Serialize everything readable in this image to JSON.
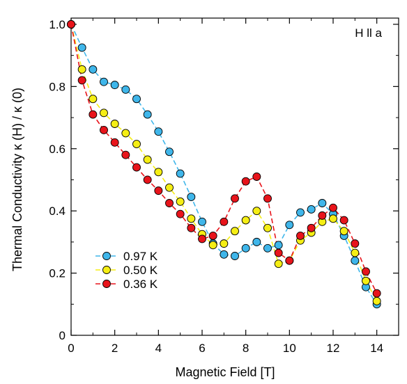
{
  "chart_data": {
    "type": "scatter",
    "title": "",
    "annotation": "H ll a",
    "xlabel": "Magnetic Field [T]",
    "ylabel": "Thermal Conductivity  κ (H) / κ (0)",
    "xlim": [
      0,
      15
    ],
    "ylim": [
      0,
      1.02
    ],
    "xticks": [
      0,
      2,
      4,
      6,
      8,
      10,
      12,
      14
    ],
    "yticks": [
      0,
      0.2,
      0.4,
      0.6,
      0.8,
      1.0
    ],
    "xtick_labels": [
      "0",
      "2",
      "4",
      "6",
      "8",
      "10",
      "12",
      "14"
    ],
    "ytick_labels": [
      "0",
      "0.2",
      "0.4",
      "0.6",
      "0.8",
      "1.0"
    ],
    "grid": false,
    "legend_position": "bottom-left",
    "series": [
      {
        "name": "0.97 K",
        "color": "#3fb6ea",
        "x": [
          0,
          0.5,
          1,
          1.5,
          2,
          2.5,
          3,
          3.5,
          4,
          4.5,
          5,
          5.5,
          6,
          6.5,
          7,
          7.5,
          8,
          8.5,
          9,
          9.5,
          10,
          10.5,
          11,
          11.5,
          12,
          12.5,
          13,
          13.5,
          14
        ],
        "y": [
          1.0,
          0.925,
          0.855,
          0.815,
          0.805,
          0.79,
          0.76,
          0.71,
          0.655,
          0.59,
          0.52,
          0.445,
          0.365,
          0.295,
          0.26,
          0.255,
          0.28,
          0.3,
          0.28,
          0.29,
          0.355,
          0.395,
          0.405,
          0.425,
          0.39,
          0.32,
          0.24,
          0.155,
          0.1
        ]
      },
      {
        "name": "0.50 K",
        "color": "#f5ee14",
        "x": [
          0,
          0.5,
          1,
          1.5,
          2,
          2.5,
          3,
          3.5,
          4,
          4.5,
          5,
          5.5,
          6,
          6.5,
          7,
          7.5,
          8,
          8.5,
          9,
          9.5,
          10,
          10.5,
          11,
          11.5,
          12,
          12.5,
          13,
          13.5,
          14
        ],
        "y": [
          1.0,
          0.855,
          0.76,
          0.715,
          0.68,
          0.65,
          0.615,
          0.565,
          0.525,
          0.475,
          0.43,
          0.375,
          0.325,
          0.29,
          0.295,
          0.335,
          0.37,
          0.4,
          0.345,
          0.23,
          0.24,
          0.305,
          0.33,
          0.365,
          0.375,
          0.335,
          0.265,
          0.175,
          0.11
        ]
      },
      {
        "name": "0.36 K",
        "color": "#e8141b",
        "x": [
          0,
          0.5,
          1,
          1.5,
          2,
          2.5,
          3,
          3.5,
          4,
          4.5,
          5,
          5.5,
          6,
          6.5,
          7,
          7.5,
          8,
          8.5,
          9,
          9.5,
          10,
          10.5,
          11,
          11.5,
          12,
          12.5,
          13,
          13.5,
          14
        ],
        "y": [
          1.0,
          0.82,
          0.71,
          0.66,
          0.62,
          0.58,
          0.54,
          0.5,
          0.465,
          0.425,
          0.39,
          0.345,
          0.31,
          0.32,
          0.365,
          0.44,
          0.495,
          0.51,
          0.44,
          0.265,
          0.24,
          0.32,
          0.345,
          0.385,
          0.41,
          0.37,
          0.295,
          0.205,
          0.135
        ]
      }
    ]
  }
}
